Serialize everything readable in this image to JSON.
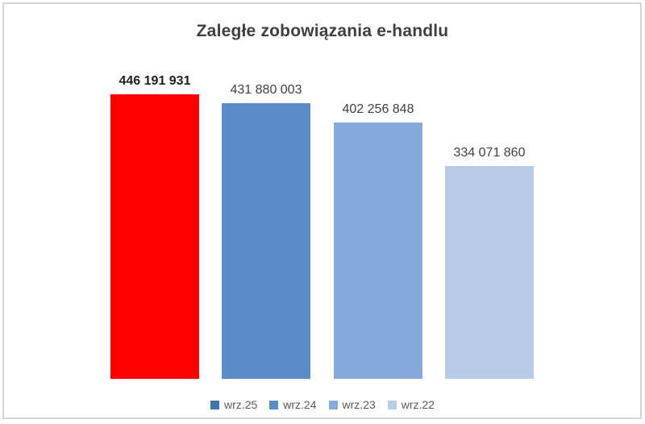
{
  "window": {
    "background": "#ffffff",
    "frame_border_color": "#d4d4d4"
  },
  "chart_data": {
    "type": "bar",
    "title": "Zaległe zobowiązania e-handlu",
    "categories": [
      "wrz.25",
      "wrz.24",
      "wrz.23",
      "wrz.22"
    ],
    "values": [
      446191931,
      431880003,
      402256848,
      334071860
    ],
    "value_labels": [
      "446 191 931",
      "431 880 003",
      "402 256 848",
      "334 071 860"
    ],
    "bar_colors": [
      "#FF0000",
      "#5A8DC8",
      "#85AADB",
      "#B8CBE8"
    ],
    "legend_colors": [
      "#4176AA",
      "#5A8DC8",
      "#85AADB",
      "#B8CBE8"
    ],
    "highlighted_index": 0,
    "xlabel": "",
    "ylabel": "",
    "ylim": [
      0,
      446191931
    ],
    "grid": false,
    "axes_visible": false,
    "legend_position": "bottom",
    "title_color": "#3f3f3f",
    "label_color": "#404040",
    "highlight_label_color": "#1f1f1f",
    "legend_text_color": "#595959"
  }
}
